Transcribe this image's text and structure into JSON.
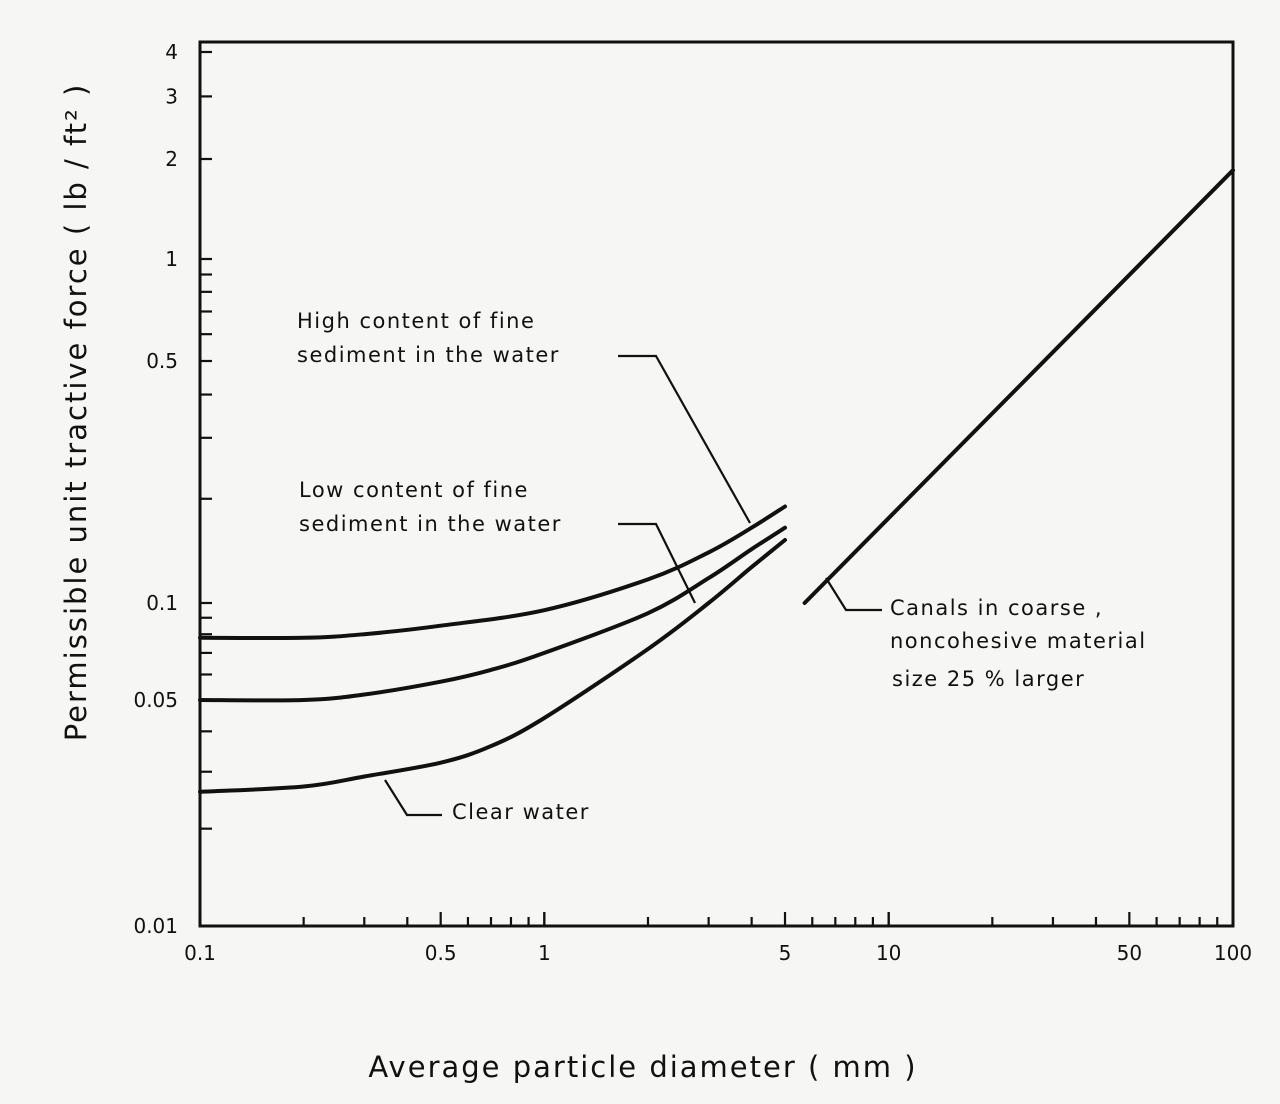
{
  "chart_data": {
    "type": "line",
    "title": "",
    "xlabel": "Average particle diameter     ( mm )",
    "ylabel": "Permissible unit tractive force   ( lb / ft² )",
    "x_scale": "log",
    "y_scale": "log",
    "xlim": [
      0.1,
      100
    ],
    "ylim": [
      0.01,
      4
    ],
    "grid": false,
    "x_ticks": [
      {
        "value": 0.1,
        "label": "0.1"
      },
      {
        "value": 0.5,
        "label": "0.5"
      },
      {
        "value": 1,
        "label": "1"
      },
      {
        "value": 5,
        "label": "5"
      },
      {
        "value": 10,
        "label": "10"
      },
      {
        "value": 50,
        "label": "50"
      },
      {
        "value": 100,
        "label": "100"
      }
    ],
    "y_ticks": [
      {
        "value": 0.01,
        "label": "0.01"
      },
      {
        "value": 0.05,
        "label": "0.05"
      },
      {
        "value": 0.1,
        "label": "0.1"
      },
      {
        "value": 0.5,
        "label": "0.5"
      },
      {
        "value": 1,
        "label": "1"
      },
      {
        "value": 2,
        "label": "2"
      },
      {
        "value": 3,
        "label": "3"
      },
      {
        "value": 4,
        "label": "4"
      }
    ],
    "series": [
      {
        "name": "High content of fine sediment in the water",
        "label_lines": [
          "High  content  of  fine",
          "sediment  in  the  water"
        ],
        "x": [
          0.1,
          0.2,
          0.3,
          0.5,
          1,
          2,
          3,
          4,
          5
        ],
        "y": [
          0.078,
          0.078,
          0.08,
          0.085,
          0.095,
          0.117,
          0.14,
          0.165,
          0.19
        ]
      },
      {
        "name": "Low content of fine sediment in the water",
        "label_lines": [
          "Low  content  of  fine",
          "sediment  in  the  water"
        ],
        "x": [
          0.1,
          0.2,
          0.3,
          0.5,
          0.7,
          1,
          2,
          3,
          4,
          5
        ],
        "y": [
          0.05,
          0.05,
          0.052,
          0.057,
          0.062,
          0.07,
          0.093,
          0.118,
          0.143,
          0.165
        ]
      },
      {
        "name": "Clear water",
        "label_lines": [
          "Clear  water"
        ],
        "x": [
          0.1,
          0.2,
          0.3,
          0.5,
          0.7,
          1,
          2,
          3,
          4,
          5
        ],
        "y": [
          0.026,
          0.027,
          0.029,
          0.032,
          0.036,
          0.044,
          0.072,
          0.1,
          0.127,
          0.152
        ]
      },
      {
        "name": "Canals in coarse, noncohesive material size 25% larger",
        "label_lines": [
          "Canals  in  coarse ,",
          "noncohesive  material",
          "size  25 %  larger"
        ],
        "x": [
          5.7,
          100
        ],
        "y": [
          0.1,
          1.85
        ]
      }
    ]
  }
}
